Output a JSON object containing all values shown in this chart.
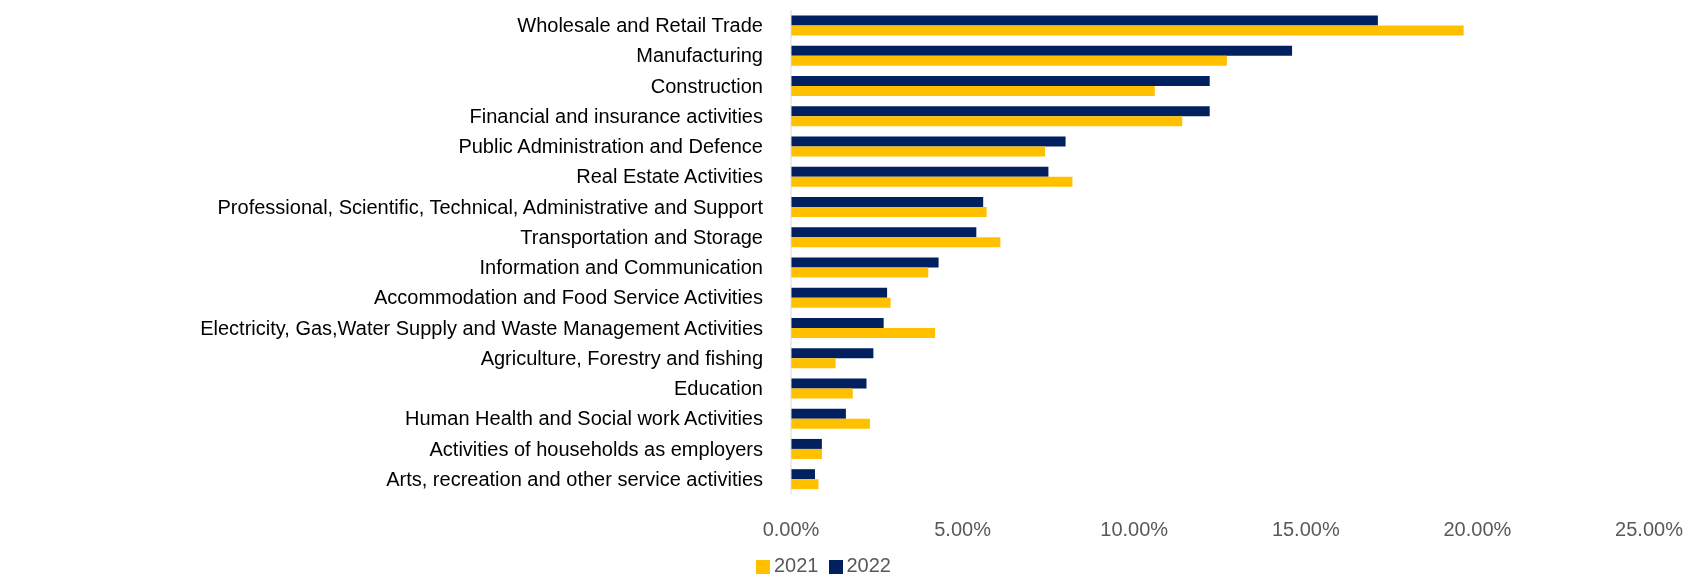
{
  "chart_data": {
    "type": "bar",
    "orientation": "horizontal",
    "categories": [
      "Wholesale and Retail Trade",
      "Manufacturing",
      "Construction",
      "Financial and insurance activities",
      "Public Administration and Defence",
      "Real Estate Activities",
      "Professional, Scientific, Technical, Administrative and Support",
      "Transportation and Storage",
      "Information and Communication",
      "Accommodation and Food Service Activities",
      "Electricity, Gas,Water Supply and Waste Management Activities",
      "Agriculture, Forestry and fishing",
      "Education",
      "Human Health and Social work Activities",
      "Activities of households as employers",
      "Arts, recreation and other service activities"
    ],
    "series": [
      {
        "name": "2022",
        "color": "#002060",
        "values": [
          17.1,
          14.6,
          12.2,
          12.2,
          8.0,
          7.5,
          5.6,
          5.4,
          4.3,
          2.8,
          2.7,
          2.4,
          2.2,
          1.6,
          0.9,
          0.7
        ]
      },
      {
        "name": "2021",
        "color": "#ffc000",
        "values": [
          19.6,
          12.7,
          10.6,
          11.4,
          7.4,
          8.2,
          5.7,
          6.1,
          4.0,
          2.9,
          4.2,
          1.3,
          1.8,
          2.3,
          0.9,
          0.8
        ]
      }
    ],
    "xlim": [
      0,
      25
    ],
    "xticks": [
      {
        "value": 0,
        "label": "0.00%"
      },
      {
        "value": 5,
        "label": "5.00%"
      },
      {
        "value": 10,
        "label": "10.00%"
      },
      {
        "value": 15,
        "label": "15.00%"
      },
      {
        "value": 20,
        "label": "20.00%"
      },
      {
        "value": 25,
        "label": "25.00%"
      }
    ],
    "grid": false,
    "legend": "bottom"
  }
}
